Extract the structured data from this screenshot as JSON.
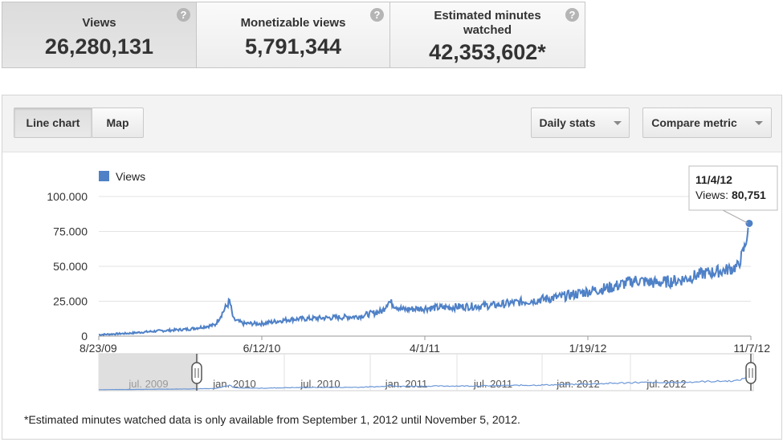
{
  "metrics": [
    {
      "label": "Views",
      "value": "26,280,131",
      "help": "?"
    },
    {
      "label": "Monetizable views",
      "value": "5,791,344",
      "help": "?"
    },
    {
      "label_line1": "Estimated minutes",
      "label_line2": "watched",
      "value": "42,353,602*",
      "help": "?"
    }
  ],
  "toolbar": {
    "line_chart": "Line chart",
    "map": "Map",
    "daily_stats": "Daily stats",
    "compare_metric": "Compare metric"
  },
  "tooltip": {
    "date": "11/4/12",
    "label": "Views:",
    "value": "80,751"
  },
  "footnote": "*Estimated minutes watched data is only available from September 1, 2012 until November 5, 2012.",
  "colors": {
    "series": "#4f81c7",
    "navigator_line": "#6b97d6"
  },
  "navigator": {
    "labels": [
      "jul. 2009",
      "jan. 2010",
      "jul. 2010",
      "jan. 2011",
      "jul. 2011",
      "jan. 2012",
      "jul. 2012"
    ]
  },
  "chart_data": {
    "type": "line",
    "legend": "Views",
    "legend_position": "top-left",
    "x_ticks": [
      "8/23/09",
      "6/12/10",
      "4/1/11",
      "1/19/12",
      "11/7/12"
    ],
    "y_ticks": [
      "100.000",
      "75.000",
      "50.000",
      "25.000",
      "0"
    ],
    "ylim": [
      0,
      100000
    ],
    "xlim": [
      "8/23/09",
      "11/7/12"
    ],
    "series": [
      {
        "name": "Views",
        "x": [
          "8/23/09",
          "10/15/09",
          "12/1/09",
          "2/1/10",
          "3/20/10",
          "4/15/10",
          "4/22/10",
          "5/10/10",
          "6/12/10",
          "8/1/10",
          "10/1/10",
          "12/1/10",
          "1/15/11",
          "1/25/11",
          "2/20/11",
          "4/1/11",
          "6/1/11",
          "8/1/11",
          "10/1/11",
          "12/1/11",
          "1/19/12",
          "3/1/12",
          "4/15/12",
          "5/20/12",
          "7/1/12",
          "8/15/12",
          "9/20/12",
          "10/15/12",
          "10/28/12",
          "11/4/12"
        ],
        "values": [
          1000,
          2000,
          3500,
          5000,
          8000,
          25000,
          12000,
          9000,
          9000,
          12000,
          13000,
          14000,
          18000,
          25000,
          19000,
          20000,
          21000,
          22000,
          25000,
          28000,
          32000,
          35000,
          40000,
          38000,
          40000,
          45000,
          47000,
          50000,
          65000,
          80751
        ]
      }
    ]
  }
}
